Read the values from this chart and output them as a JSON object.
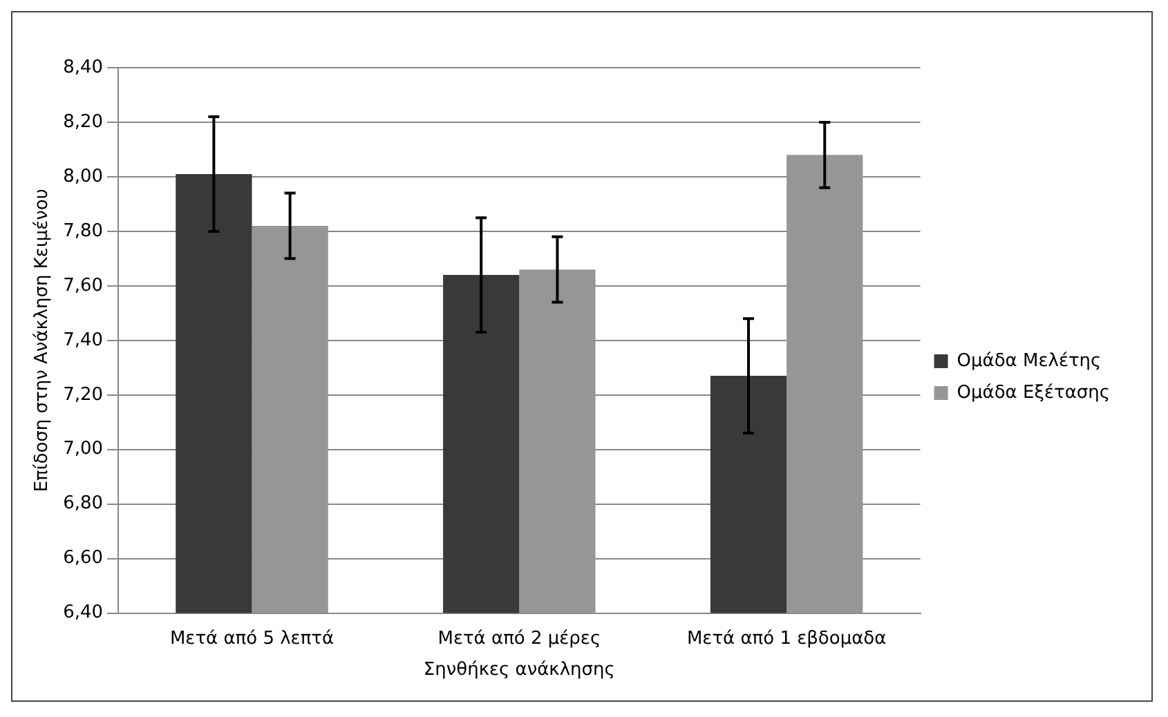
{
  "chart_data": {
    "type": "bar",
    "xlabel": "Σηνθήκες ανάκλησης",
    "ylabel": "Επίδοση στην Ανάκληση Κειμένου",
    "categories": [
      "Μετά από 5 λεπτά",
      "Μετά από 2 μέρες",
      "Μετά από 1 εβδομαδα"
    ],
    "series": [
      {
        "name": "Ομάδα Μελέτης",
        "color": "#383938",
        "values": [
          8.01,
          7.64,
          7.27
        ],
        "errors": [
          0.21,
          0.21,
          0.21
        ]
      },
      {
        "name": "Ομάδα Εξέτασης",
        "color": "#969696",
        "values": [
          7.82,
          7.66,
          8.08
        ],
        "errors": [
          0.12,
          0.12,
          0.12
        ]
      }
    ],
    "ylim": [
      6.4,
      8.4
    ],
    "yticks": [
      {
        "value": 6.4,
        "label": "6,40"
      },
      {
        "value": 6.6,
        "label": "6,60"
      },
      {
        "value": 6.8,
        "label": "6,80"
      },
      {
        "value": 7.0,
        "label": "7,00"
      },
      {
        "value": 7.2,
        "label": "7,20"
      },
      {
        "value": 7.4,
        "label": "7,40"
      },
      {
        "value": 7.6,
        "label": "7,60"
      },
      {
        "value": 7.8,
        "label": "7,80"
      },
      {
        "value": 8.0,
        "label": "8,00"
      },
      {
        "value": 8.2,
        "label": "8,20"
      },
      {
        "value": 8.4,
        "label": "8,40"
      }
    ],
    "grid": "y",
    "legend": "right"
  }
}
